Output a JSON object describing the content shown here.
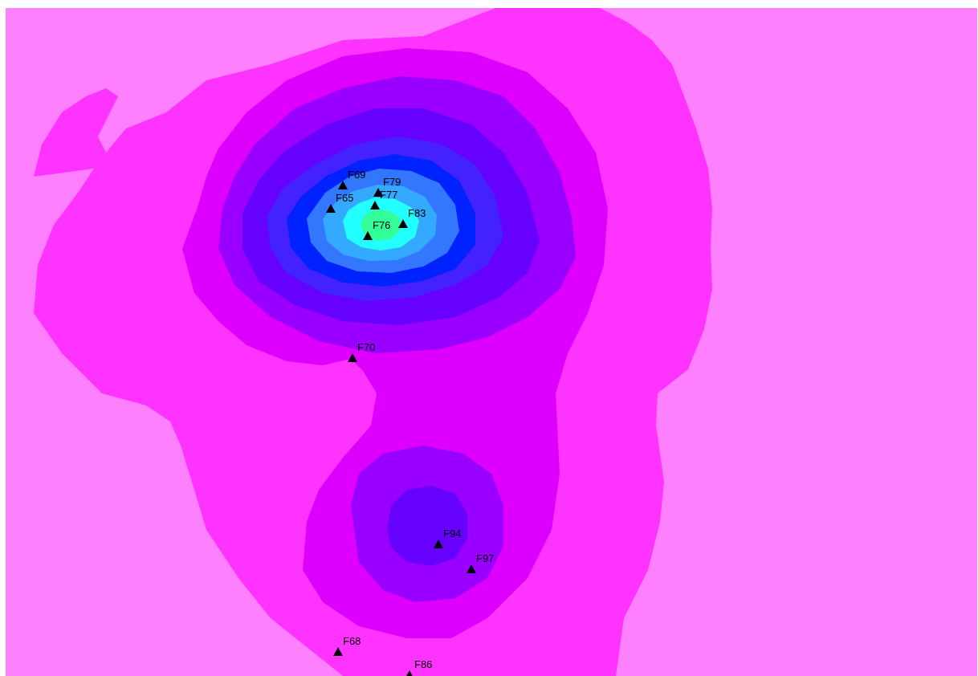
{
  "map": {
    "colors": {
      "background": "#ff80ff",
      "band1": "#ff33ff",
      "band2": "#dd00ff",
      "band3": "#9900ff",
      "band4": "#6600ff",
      "band5": "#4422ff",
      "band6": "#0022ff",
      "band7": "#3377ff",
      "band8": "#33aaff",
      "band9": "#22ffff",
      "band10": "#33ff99",
      "marker": "#000000"
    },
    "marker_icon": "triangle-marker-icon",
    "wells": [
      {
        "id": "F69",
        "label": "F69"
      },
      {
        "id": "F79",
        "label": "F79"
      },
      {
        "id": "F77",
        "label": "F77"
      },
      {
        "id": "F65",
        "label": "F65"
      },
      {
        "id": "F83",
        "label": "F83"
      },
      {
        "id": "F76",
        "label": "F76"
      },
      {
        "id": "F70",
        "label": "F70"
      },
      {
        "id": "F94",
        "label": "F94"
      },
      {
        "id": "F97",
        "label": "F97"
      },
      {
        "id": "F68",
        "label": "F68"
      },
      {
        "id": "F86",
        "label": "F86"
      }
    ]
  }
}
